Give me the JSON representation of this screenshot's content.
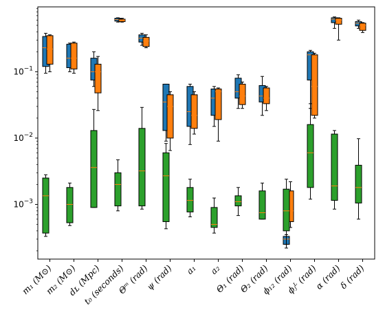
{
  "chart_data": {
    "type": "box",
    "title": "",
    "xlabel": "",
    "ylabel": "",
    "yscale": "log",
    "ylim": [
      0.00015,
      0.95
    ],
    "yticks": [
      {
        "value": 0.001,
        "base": "10",
        "exp": "−3"
      },
      {
        "value": 0.01,
        "base": "10",
        "exp": "−2"
      },
      {
        "value": 0.1,
        "base": "10",
        "exp": "−1"
      }
    ],
    "grid": false,
    "legend": "none",
    "categories": [
      "m₁ (M⊙)",
      "m₂ (M⊙)",
      "dʟ (Mpc)",
      "t₀ (seconds)",
      "Θᵐ (rad)",
      "ψ (rad)",
      "a₁",
      "a₂",
      "Θ₁ (rad)",
      "Θ₂ (rad)",
      "ϕ₁₂ (rad)",
      "ϕⱼᴸ (rad)",
      "α (rad)",
      "δ (rad)"
    ],
    "series": [
      {
        "color": "#1f77b4",
        "boxes": [
          {
            "whislo": 0.095,
            "q1": 0.12,
            "med": 0.23,
            "q3": 0.34,
            "whishi": 0.38
          },
          {
            "whislo": 0.1,
            "q1": 0.115,
            "med": 0.16,
            "q3": 0.26,
            "whishi": 0.27
          },
          {
            "whislo": 0.06,
            "q1": 0.075,
            "med": 0.1,
            "q3": 0.16,
            "whishi": 0.2
          },
          {
            "whislo": 0.56,
            "q1": 0.58,
            "med": 0.61,
            "q3": 0.64,
            "whishi": 0.65
          },
          {
            "whislo": 0.25,
            "q1": 0.28,
            "med": 0.32,
            "q3": 0.36,
            "whishi": 0.38
          },
          {
            "whislo": 0.009,
            "q1": 0.013,
            "med": 0.035,
            "q3": 0.065,
            "whishi": 0.065
          },
          {
            "whislo": 0.008,
            "q1": 0.015,
            "med": 0.025,
            "q3": 0.06,
            "whishi": 0.065
          },
          {
            "whislo": 0.015,
            "q1": 0.022,
            "med": 0.04,
            "q3": 0.055,
            "whishi": 0.06
          },
          {
            "whislo": 0.028,
            "q1": 0.04,
            "med": 0.05,
            "q3": 0.08,
            "whishi": 0.09
          },
          {
            "whislo": 0.022,
            "q1": 0.035,
            "med": 0.043,
            "q3": 0.062,
            "whishi": 0.085
          },
          {
            "whislo": 0.00022,
            "q1": 0.00025,
            "med": 0.0003,
            "q3": 0.00033,
            "whishi": 0.00035
          },
          {
            "whislo": 0.028,
            "q1": 0.075,
            "med": 0.18,
            "q3": 0.2,
            "whishi": 0.21
          },
          {
            "whislo": 0.45,
            "q1": 0.55,
            "med": 0.62,
            "q3": 0.65,
            "whishi": 0.67
          },
          {
            "whislo": 0.45,
            "q1": 0.49,
            "med": 0.54,
            "q3": 0.57,
            "whishi": 0.6
          }
        ]
      },
      {
        "color": "#ff7f0e",
        "boxes": [
          {
            "whislo": 0.1,
            "q1": 0.13,
            "med": 0.22,
            "q3": 0.35,
            "whishi": 0.36
          },
          {
            "whislo": 0.095,
            "q1": 0.11,
            "med": 0.16,
            "q3": 0.27,
            "whishi": 0.28
          },
          {
            "whislo": 0.026,
            "q1": 0.048,
            "med": 0.1,
            "q3": 0.13,
            "whishi": 0.17
          },
          {
            "whislo": 0.56,
            "q1": 0.57,
            "med": 0.6,
            "q3": 0.62,
            "whishi": 0.64
          },
          {
            "whislo": 0.23,
            "q1": 0.24,
            "med": 0.29,
            "q3": 0.33,
            "whishi": 0.36
          },
          {
            "whislo": 0.0065,
            "q1": 0.01,
            "med": 0.03,
            "q3": 0.045,
            "whishi": 0.05
          },
          {
            "whislo": 0.0115,
            "q1": 0.014,
            "med": 0.022,
            "q3": 0.045,
            "whishi": 0.05
          },
          {
            "whislo": 0.009,
            "q1": 0.019,
            "med": 0.05,
            "q3": 0.055,
            "whishi": 0.057
          },
          {
            "whislo": 0.028,
            "q1": 0.032,
            "med": 0.043,
            "q3": 0.065,
            "whishi": 0.07
          },
          {
            "whislo": 0.026,
            "q1": 0.033,
            "med": 0.04,
            "q3": 0.057,
            "whishi": 0.06
          },
          {
            "whislo": 0.00045,
            "q1": 0.00055,
            "med": 0.0008,
            "q3": 0.0016,
            "whishi": 0.0022
          },
          {
            "whislo": 0.02,
            "q1": 0.022,
            "med": 0.06,
            "q3": 0.18,
            "whishi": 0.19
          },
          {
            "whislo": 0.3,
            "q1": 0.52,
            "med": 0.6,
            "q3": 0.64,
            "whishi": 0.65
          },
          {
            "whislo": 0.39,
            "q1": 0.42,
            "med": 0.5,
            "q3": 0.54,
            "whishi": 0.55
          }
        ]
      },
      {
        "color": "#2ca02c",
        "boxes": [
          {
            "whislo": 0.00033,
            "q1": 0.00037,
            "med": 0.00135,
            "q3": 0.0025,
            "whishi": 0.0028
          },
          {
            "whislo": 0.00048,
            "q1": 0.00053,
            "med": 0.001,
            "q3": 0.0018,
            "whishi": 0.0021
          },
          {
            "whislo": 0.0009,
            "q1": 0.0009,
            "med": 0.0036,
            "q3": 0.013,
            "whishi": 0.027
          },
          {
            "whislo": 0.0008,
            "q1": 0.00095,
            "med": 0.002,
            "q3": 0.003,
            "whishi": 0.0047
          },
          {
            "whislo": 0.00085,
            "q1": 0.00095,
            "med": 0.0032,
            "q3": 0.014,
            "whishi": 0.029
          },
          {
            "whislo": 0.00043,
            "q1": 0.00055,
            "med": 0.0027,
            "q3": 0.006,
            "whishi": 0.0083
          },
          {
            "whislo": 0.00065,
            "q1": 0.00077,
            "med": 0.00115,
            "q3": 0.0018,
            "whishi": 0.0024
          },
          {
            "whislo": 0.00037,
            "q1": 0.00045,
            "med": 0.0005,
            "q3": 0.0009,
            "whishi": 0.00125
          },
          {
            "whislo": 0.00068,
            "q1": 0.00095,
            "med": 0.0011,
            "q3": 0.00135,
            "whishi": 0.0018
          },
          {
            "whislo": 0.0006,
            "q1": 0.0006,
            "med": 0.00075,
            "q3": 0.0016,
            "whishi": 0.0021
          },
          {
            "whislo": 0.00025,
            "q1": 0.0004,
            "med": 0.0008,
            "q3": 0.0017,
            "whishi": 0.0024
          },
          {
            "whislo": 0.0012,
            "q1": 0.0018,
            "med": 0.006,
            "q3": 0.016,
            "whishi": 0.033
          },
          {
            "whislo": 0.00085,
            "q1": 0.00115,
            "med": 0.0019,
            "q3": 0.0115,
            "whishi": 0.013
          },
          {
            "whislo": 0.0006,
            "q1": 0.00105,
            "med": 0.0018,
            "q3": 0.0039,
            "whishi": 0.0098
          }
        ]
      }
    ]
  }
}
